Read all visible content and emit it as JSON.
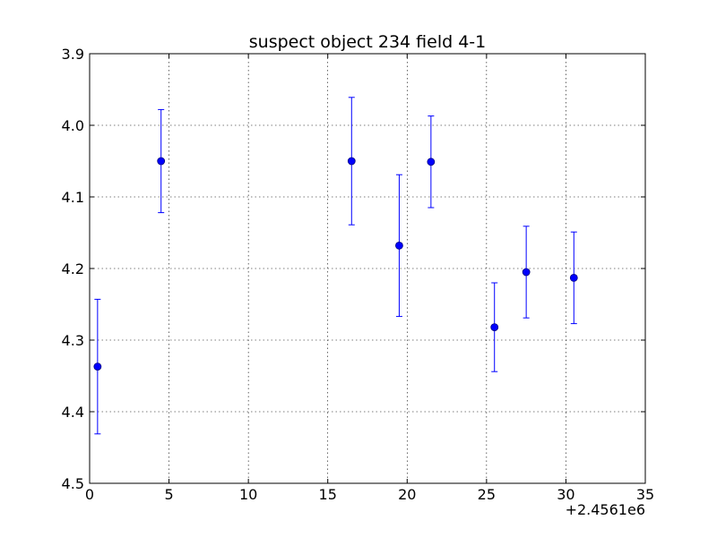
{
  "chart_data": {
    "type": "scatter",
    "title": "suspect object 234 field 4-1",
    "xlabel": "",
    "ylabel": "",
    "x_offset_label": "+2.4561e6",
    "xlim": [
      0,
      35
    ],
    "ylim": [
      4.5,
      3.9
    ],
    "y_inverted": true,
    "grid": true,
    "x_ticks": [
      "0",
      "5",
      "10",
      "15",
      "20",
      "25",
      "30",
      "35"
    ],
    "y_ticks": [
      "3.9",
      "4.0",
      "4.1",
      "4.2",
      "4.3",
      "4.4",
      "4.5"
    ],
    "x_tick_values": [
      0,
      5,
      10,
      15,
      20,
      25,
      30,
      35
    ],
    "y_tick_values": [
      3.9,
      4.0,
      4.1,
      4.2,
      4.3,
      4.4,
      4.5
    ],
    "series": [
      {
        "marker": "circle",
        "color": "#0000ff",
        "points": [
          {
            "x": 0.5,
            "y": 4.337,
            "yerr": 0.094
          },
          {
            "x": 4.5,
            "y": 4.05,
            "yerr": 0.072
          },
          {
            "x": 16.5,
            "y": 4.05,
            "yerr": 0.089
          },
          {
            "x": 19.5,
            "y": 4.168,
            "yerr": 0.099
          },
          {
            "x": 21.5,
            "y": 4.051,
            "yerr": 0.064
          },
          {
            "x": 25.5,
            "y": 4.282,
            "yerr": 0.062
          },
          {
            "x": 27.5,
            "y": 4.205,
            "yerr": 0.064
          },
          {
            "x": 30.5,
            "y": 4.213,
            "yerr": 0.064
          }
        ]
      }
    ]
  }
}
